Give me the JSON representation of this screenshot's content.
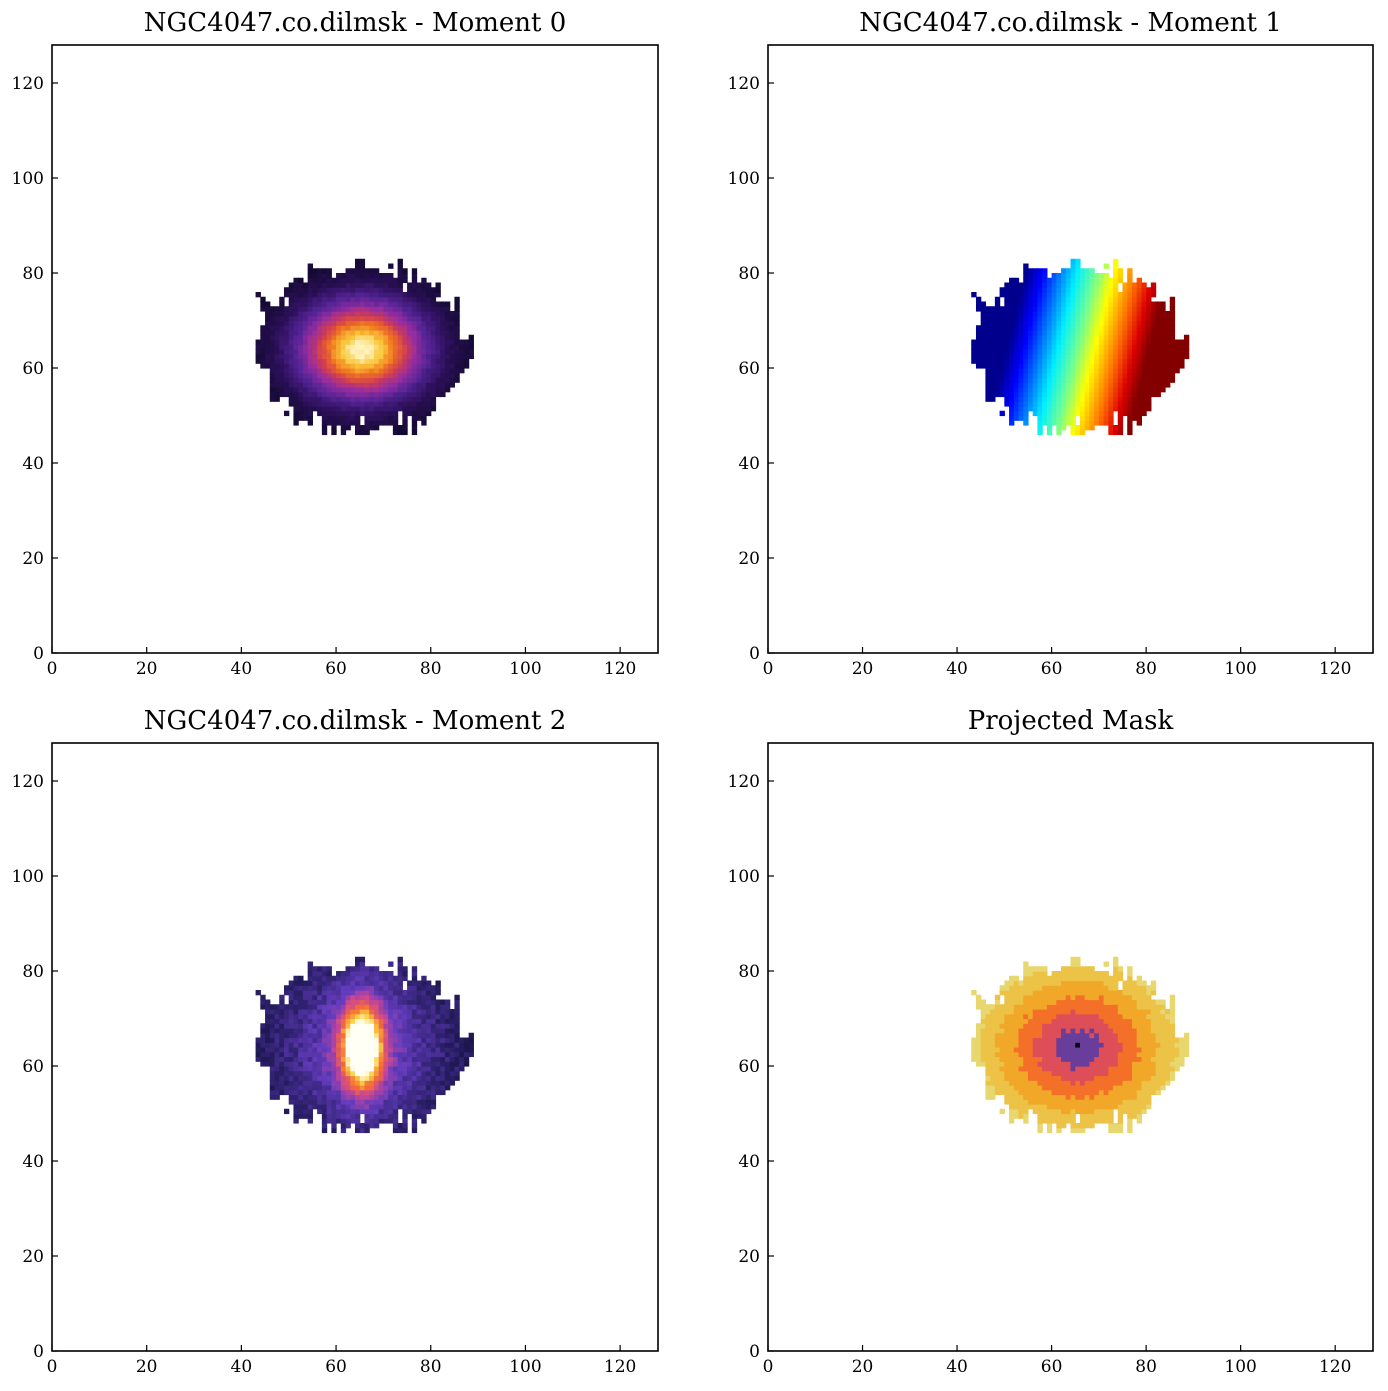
{
  "chart_data": [
    {
      "type": "heatmap",
      "title": "NGC4047.co.dilmsk - Moment 0",
      "colormap": "inferno",
      "xlim": [
        0,
        128
      ],
      "ylim": [
        0,
        128
      ],
      "xticks": [
        0,
        20,
        40,
        60,
        80,
        100,
        120
      ],
      "yticks": [
        0,
        20,
        40,
        60,
        80,
        100,
        120
      ],
      "tick_labels_x": [
        "0",
        "20",
        "40",
        "60",
        "80",
        "100",
        "120"
      ],
      "tick_labels_y": [
        "0",
        "20",
        "40",
        "60",
        "80",
        "100",
        "120"
      ],
      "source_center": [
        65,
        63
      ],
      "source_extent_x": [
        43,
        92
      ],
      "source_extent_y": [
        46,
        84
      ],
      "peak_position": [
        65,
        64
      ]
    },
    {
      "type": "heatmap",
      "title": "NGC4047.co.dilmsk - Moment 1",
      "colormap": "jet",
      "xlim": [
        0,
        128
      ],
      "ylim": [
        0,
        128
      ],
      "xticks": [
        0,
        20,
        40,
        60,
        80,
        100,
        120
      ],
      "yticks": [
        0,
        20,
        40,
        60,
        80,
        100,
        120
      ],
      "tick_labels_x": [
        "0",
        "20",
        "40",
        "60",
        "80",
        "100",
        "120"
      ],
      "tick_labels_y": [
        "0",
        "20",
        "40",
        "60",
        "80",
        "100",
        "120"
      ],
      "source_center": [
        65,
        63
      ],
      "source_extent_x": [
        43,
        92
      ],
      "source_extent_y": [
        46,
        84
      ],
      "gradient": "blue-east-to-red-west"
    },
    {
      "type": "heatmap",
      "title": "NGC4047.co.dilmsk - Moment 2",
      "colormap": "CMRmap",
      "xlim": [
        0,
        128
      ],
      "ylim": [
        0,
        128
      ],
      "xticks": [
        0,
        20,
        40,
        60,
        80,
        100,
        120
      ],
      "yticks": [
        0,
        20,
        40,
        60,
        80,
        100,
        120
      ],
      "tick_labels_x": [
        "0",
        "20",
        "40",
        "60",
        "80",
        "100",
        "120"
      ],
      "tick_labels_y": [
        "0",
        "20",
        "40",
        "60",
        "80",
        "100",
        "120"
      ],
      "source_center": [
        65,
        63
      ],
      "source_extent_x": [
        43,
        92
      ],
      "source_extent_y": [
        46,
        84
      ],
      "peak_position": [
        64,
        64
      ]
    },
    {
      "type": "heatmap",
      "title": "Projected Mask",
      "colormap": "CMRmap_r",
      "xlim": [
        0,
        128
      ],
      "ylim": [
        0,
        128
      ],
      "xticks": [
        0,
        20,
        40,
        60,
        80,
        100,
        120
      ],
      "yticks": [
        0,
        20,
        40,
        60,
        80,
        100,
        120
      ],
      "tick_labels_x": [
        "0",
        "20",
        "40",
        "60",
        "80",
        "100",
        "120"
      ],
      "tick_labels_y": [
        "0",
        "20",
        "40",
        "60",
        "80",
        "100",
        "120"
      ],
      "source_center": [
        65,
        63
      ],
      "source_extent_x": [
        43,
        92
      ],
      "source_extent_y": [
        46,
        84
      ],
      "peak_position": [
        65,
        64
      ]
    }
  ]
}
